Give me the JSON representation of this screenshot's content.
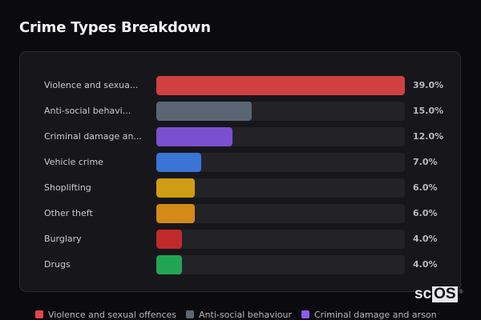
{
  "header": {
    "title": "Crime Types Breakdown"
  },
  "chart_data": {
    "type": "bar",
    "orientation": "horizontal",
    "title": "Crime Types Breakdown",
    "categories": [
      "Violence and sexual offences",
      "Anti-social behaviour",
      "Criminal damage and arson",
      "Vehicle crime",
      "Shoplifting",
      "Other theft",
      "Burglary",
      "Drugs"
    ],
    "display_labels": [
      "Violence and sexua...",
      "Anti-social behavi...",
      "Criminal damage an...",
      "Vehicle crime",
      "Shoplifting",
      "Other theft",
      "Burglary",
      "Drugs"
    ],
    "values": [
      39.0,
      15.0,
      12.0,
      7.0,
      6.0,
      6.0,
      4.0,
      4.0
    ],
    "value_labels": [
      "39.0%",
      "15.0%",
      "12.0%",
      "7.0%",
      "6.0%",
      "6.0%",
      "4.0%",
      "4.0%"
    ],
    "colors": [
      "#d04040",
      "#5b6675",
      "#7a4fd0",
      "#3a74d4",
      "#cf9e14",
      "#d48a18",
      "#c02a2a",
      "#22a455"
    ],
    "unit": "%",
    "xlim": [
      0,
      39
    ],
    "grid": false,
    "legend": {
      "position": "bottom",
      "entries": [
        {
          "label": "Violence and sexual offences",
          "color": "#e04848"
        },
        {
          "label": "Anti-social behaviour",
          "color": "#5b6675"
        },
        {
          "label": "Criminal damage and arson",
          "color": "#8a5cf0"
        }
      ]
    }
  },
  "rows": [
    {
      "label": "Violence and sexua...",
      "value": "39.0%"
    },
    {
      "label": "Anti-social behavi...",
      "value": "15.0%"
    },
    {
      "label": "Criminal damage an...",
      "value": "12.0%"
    },
    {
      "label": "Vehicle crime",
      "value": "7.0%"
    },
    {
      "label": "Shoplifting",
      "value": "6.0%"
    },
    {
      "label": "Other theft",
      "value": "6.0%"
    },
    {
      "label": "Burglary",
      "value": "4.0%"
    },
    {
      "label": "Drugs",
      "value": "4.0%"
    }
  ],
  "legend": [
    {
      "label": "Violence and sexual offences"
    },
    {
      "label": "Anti-social behaviour"
    },
    {
      "label": "Criminal damage and arson"
    }
  ],
  "watermark": {
    "prefix": "sc",
    "boxed": "OS",
    "mark": "®"
  }
}
